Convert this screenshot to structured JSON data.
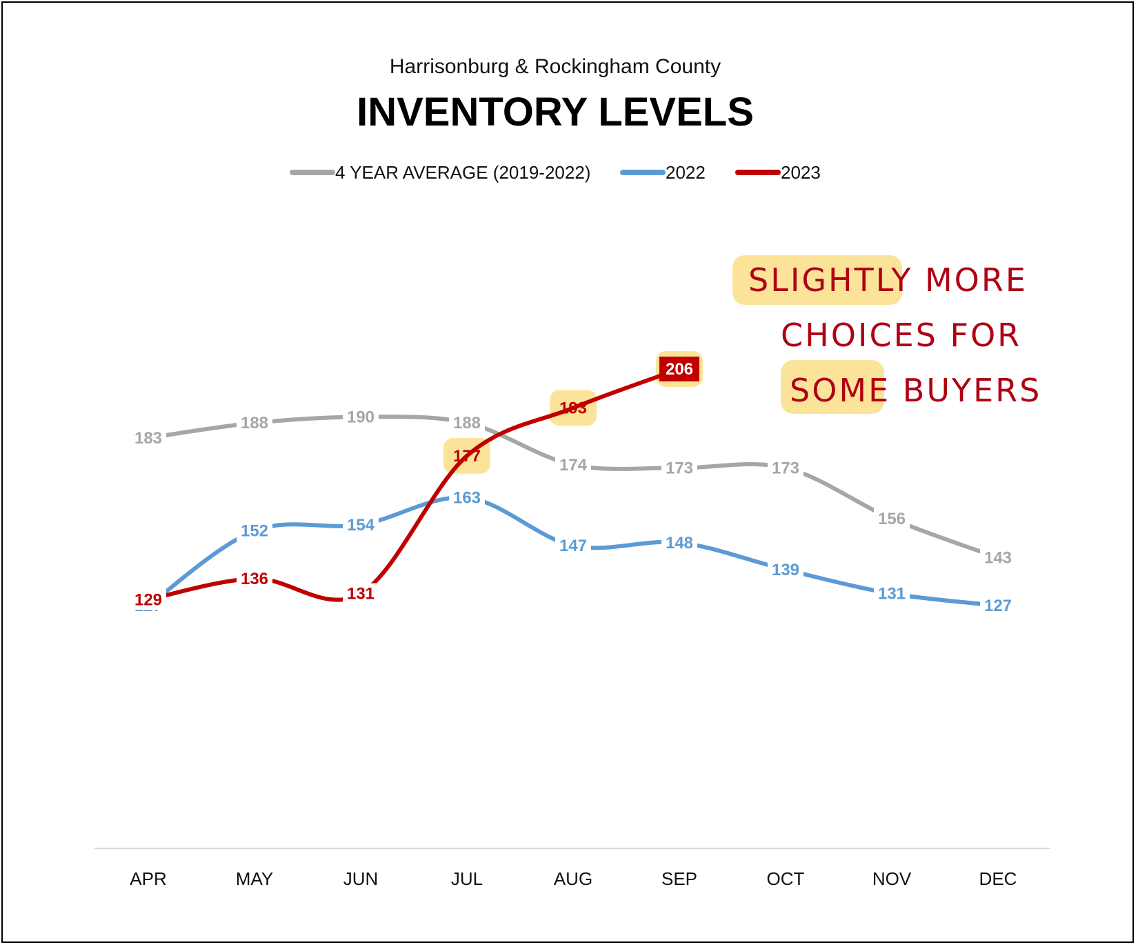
{
  "chart_data": {
    "type": "line",
    "subtitle": "Harrisonburg & Rockingham County",
    "title": "INVENTORY LEVELS",
    "categories": [
      "APR",
      "MAY",
      "JUN",
      "JUL",
      "AUG",
      "SEP",
      "OCT",
      "NOV",
      "DEC"
    ],
    "series": [
      {
        "name": "4 YEAR AVERAGE (2019-2022)",
        "color": "#a6a6a6",
        "labelColor": "#a6a6a6",
        "values": [
          183,
          188,
          190,
          188,
          174,
          173,
          173,
          156,
          143
        ]
      },
      {
        "name": "2022",
        "color": "#5b9bd5",
        "labelColor": "#5b9bd5",
        "values": [
          127,
          152,
          154,
          163,
          147,
          148,
          139,
          131,
          127
        ]
      },
      {
        "name": "2023",
        "color": "#c00000",
        "labelColor": "#c00000",
        "values": [
          129,
          136,
          131,
          177,
          193,
          206,
          null,
          null,
          null
        ]
      }
    ],
    "ylim": [
      60,
      250
    ],
    "grid": false,
    "legend_position": "top-center",
    "annotation": [
      "SLIGHTLY MORE",
      "CHOICES FOR",
      "SOME BUYERS"
    ],
    "highlight_color": "#fbe49a"
  }
}
